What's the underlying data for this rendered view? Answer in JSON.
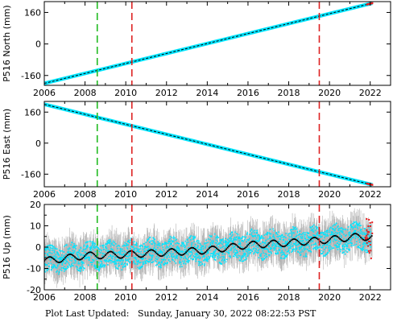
{
  "footer": {
    "label": "Plot Last Updated:",
    "timestamp": "Sunday, January 30, 2022 08:22:53 PST"
  },
  "colors": {
    "series": "#00e5ff",
    "trend": "#000000",
    "error_bars": "#b4b4b4",
    "outliers": "#e81c1c",
    "event_green": "#22bb22",
    "event_red": "#dd2222"
  },
  "chart_data": [
    {
      "type": "scatter",
      "panel": "north",
      "ylabel": "P516 North (mm)",
      "xlim": [
        2006.0,
        2023.0
      ],
      "ylim": [
        -210,
        215
      ],
      "xticks": [
        2006,
        2008,
        2010,
        2012,
        2014,
        2016,
        2018,
        2020,
        2022
      ],
      "xtick_labels": [
        "2006",
        "2008",
        "2010",
        "2012",
        "2014",
        "2016",
        "2018",
        "2020",
        "2022"
      ],
      "yticks": [
        160,
        0,
        -160
      ],
      "ytick_labels": [
        "160",
        "0",
        "-160"
      ],
      "grid": false,
      "series": [
        {
          "x": [
            2006.0,
            2022.1
          ],
          "y": [
            -200,
            207
          ]
        }
      ],
      "event_lines": [
        {
          "x": 2008.6,
          "color": "green"
        },
        {
          "x": 2010.3,
          "color": "red"
        },
        {
          "x": 2019.5,
          "color": "red"
        }
      ]
    },
    {
      "type": "scatter",
      "panel": "east",
      "ylabel": "P516 East (mm)",
      "xlim": [
        2006.0,
        2023.0
      ],
      "ylim": [
        -225,
        215
      ],
      "xticks": [
        2006,
        2008,
        2010,
        2012,
        2014,
        2016,
        2018,
        2020,
        2022
      ],
      "xtick_labels": [
        "2006",
        "2008",
        "2010",
        "2012",
        "2014",
        "2016",
        "2018",
        "2020",
        "2022"
      ],
      "yticks": [
        160,
        0,
        -160
      ],
      "ytick_labels": [
        "160",
        "0",
        "-160"
      ],
      "grid": false,
      "series": [
        {
          "x": [
            2006.0,
            2022.1
          ],
          "y": [
            200,
            -215
          ]
        }
      ],
      "event_lines": [
        {
          "x": 2008.6,
          "color": "green"
        },
        {
          "x": 2010.3,
          "color": "red"
        },
        {
          "x": 2019.5,
          "color": "red"
        }
      ]
    },
    {
      "type": "scatter",
      "panel": "up",
      "ylabel": "P516 Up (mm)",
      "xlim": [
        2006.0,
        2023.0
      ],
      "ylim": [
        -20,
        20
      ],
      "xticks": [
        2006,
        2008,
        2010,
        2012,
        2014,
        2016,
        2018,
        2020,
        2022
      ],
      "xtick_labels": [
        "2006",
        "2008",
        "2010",
        "2012",
        "2014",
        "2016",
        "2018",
        "2020",
        "2022"
      ],
      "yticks": [
        20,
        10,
        0,
        -10,
        -20
      ],
      "ytick_labels": [
        "20",
        "10",
        "0",
        "-10",
        "-20"
      ],
      "grid": false,
      "series": [
        {
          "x": [
            2006.0,
            2008.0,
            2010.0,
            2012.0,
            2014.0,
            2016.0,
            2018.0,
            2020.0,
            2021.5,
            2022.0
          ],
          "y": [
            -6.5,
            -4.0,
            -3.5,
            -2.5,
            -1.5,
            1.0,
            2.0,
            3.5,
            5.0,
            4.5
          ]
        }
      ],
      "event_lines": [
        {
          "x": 2008.6,
          "color": "green"
        },
        {
          "x": 2010.3,
          "color": "red"
        },
        {
          "x": 2019.5,
          "color": "red"
        }
      ]
    }
  ]
}
